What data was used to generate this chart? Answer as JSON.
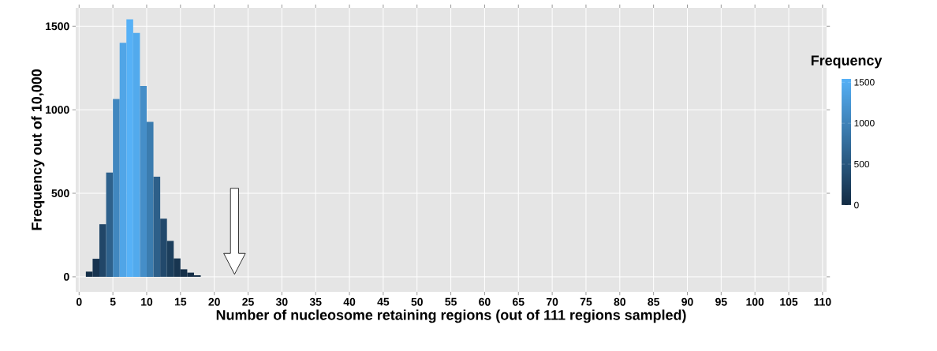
{
  "chart_data": {
    "type": "histogram",
    "xlabel": "Number of nucleosome retaining regions (out of 111 regions sampled)",
    "ylabel": "Frequency out of 10,000",
    "clabel": "Frequency",
    "bins": [
      1,
      2,
      3,
      4,
      5,
      6,
      7,
      8,
      9,
      10,
      11,
      12,
      13,
      14,
      15,
      16,
      17,
      18
    ],
    "values": [
      31,
      108,
      315,
      624,
      1064,
      1401,
      1542,
      1460,
      1142,
      928,
      599,
      348,
      215,
      110,
      45,
      25,
      9
    ],
    "colors": [
      "#142e47",
      "#183450",
      "#214668",
      "#2e618c",
      "#4187bf",
      "#50a5e7",
      "#56b1f7",
      "#52aaed",
      "#458ec8",
      "#3b7caf",
      "#2d5f89",
      "#22496c",
      "#1c3e5c",
      "#183550",
      "#152f48",
      "#142d46",
      "#132c44"
    ],
    "xlim": [
      -0.5,
      110.6
    ],
    "ylim": [
      -90,
      1610
    ],
    "xticks": [
      0,
      5,
      10,
      15,
      20,
      25,
      30,
      35,
      40,
      45,
      50,
      55,
      60,
      65,
      70,
      75,
      80,
      85,
      90,
      95,
      100,
      105,
      110
    ],
    "yticks": [
      0,
      500,
      1000,
      1500
    ],
    "clim": [
      0,
      1542
    ],
    "cticks": [
      0,
      500,
      1000,
      1500
    ],
    "grid": true
  }
}
